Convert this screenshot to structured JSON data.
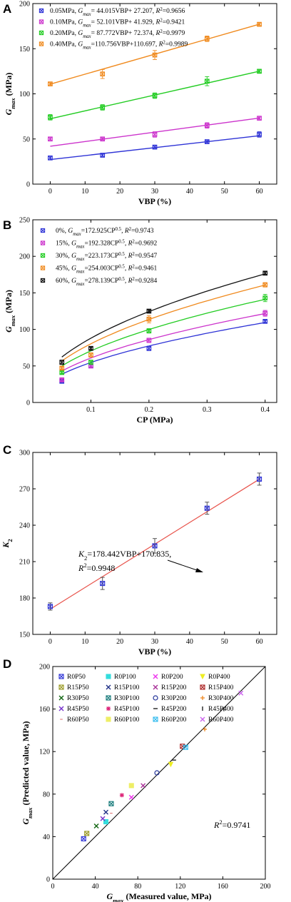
{
  "panels": [
    {
      "letter": "A"
    },
    {
      "letter": "B"
    },
    {
      "letter": "C"
    },
    {
      "letter": "D"
    }
  ],
  "chart_data": [
    {
      "type": "scatter",
      "panel": "A",
      "xlabel": "VBP (%)",
      "ylabel": "G_max (MPa)",
      "xlim": [
        -5,
        65
      ],
      "ylim": [
        0,
        200
      ],
      "xticks": [
        0,
        10,
        20,
        30,
        40,
        50,
        60
      ],
      "yticks": [
        0,
        50,
        100,
        150,
        200
      ],
      "x": [
        0,
        15,
        30,
        45,
        60
      ],
      "legend_position": "top-left",
      "series": [
        {
          "name": "0.05MPa",
          "fit_text": "0.05MPa, G_max= 44.015VBP+ 27.207, R²=0.9656",
          "color": "#2e33d6",
          "values": [
            29,
            32,
            41,
            47,
            55
          ],
          "err": [
            2,
            2,
            2,
            2,
            3
          ],
          "fit": [
            44.015,
            27.207
          ]
        },
        {
          "name": "0.10MPa",
          "fit_text": "0.10MPa, G_max= 52.101VBP+ 41.929, R²=0.9421",
          "color": "#cc33cc",
          "values": [
            50,
            50,
            55,
            65,
            73
          ],
          "err": [
            2,
            2,
            3,
            3,
            2
          ],
          "fit": [
            52.101,
            41.929
          ]
        },
        {
          "name": "0.20MPa",
          "fit_text": "0.20MPa, G_max= 87.772VBP+ 72.374, R²=0.9979",
          "color": "#22cc22",
          "values": [
            74,
            85,
            98,
            114,
            125
          ],
          "err": [
            3,
            3,
            3,
            5,
            2
          ],
          "fit": [
            87.772,
            72.374
          ]
        },
        {
          "name": "0.40MPa",
          "fit_text": "0.40MPa, G_max=110.756VBP+110.697, R²=0.9989",
          "color": "#f08a1e",
          "values": [
            111,
            122,
            143,
            161,
            177
          ],
          "err": [
            2,
            5,
            5,
            3,
            2
          ],
          "fit": [
            110.756,
            110.697
          ]
        }
      ]
    },
    {
      "type": "scatter",
      "panel": "B",
      "xlabel": "CP (MPa)",
      "ylabel": "G_max (MPa)",
      "xlim": [
        0,
        0.42
      ],
      "ylim": [
        0,
        250
      ],
      "xticks": [
        0.1,
        0.2,
        0.3,
        0.4
      ],
      "yticks": [
        0,
        50,
        100,
        150,
        200,
        250
      ],
      "x": [
        0.05,
        0.1,
        0.2,
        0.4
      ],
      "legend_position": "top-left",
      "series": [
        {
          "name": "0%",
          "fit_text": "0%, G_max=172.925CP^0.5, R²=0.9743",
          "color": "#2e33d6",
          "values": [
            29,
            50,
            74,
            111
          ],
          "err": [
            2,
            2,
            3,
            2
          ],
          "coef": 172.925
        },
        {
          "name": "15%",
          "fit_text": "15%, G_max=192.328CP^0.5, R²=0.9692",
          "color": "#cc33cc",
          "values": [
            31,
            50,
            85,
            122
          ],
          "err": [
            2,
            2,
            3,
            4
          ],
          "coef": 192.328
        },
        {
          "name": "30%",
          "fit_text": "30%, G_max=223.173CP^0.5, R²=0.9547",
          "color": "#22cc22",
          "values": [
            41,
            55,
            98,
            143
          ],
          "err": [
            2,
            3,
            3,
            5
          ],
          "coef": 223.173
        },
        {
          "name": "45%",
          "fit_text": "45%, G_max=254.003CP^0.5, R²=0.9461",
          "color": "#f08a1e",
          "values": [
            47,
            65,
            114,
            161
          ],
          "err": [
            2,
            3,
            5,
            3
          ],
          "coef": 254.003
        },
        {
          "name": "60%",
          "fit_text": "60%, G_max=278.139CP^0.5, R²=0.9284",
          "color": "#111111",
          "values": [
            55,
            74,
            125,
            177
          ],
          "err": [
            3,
            2,
            2,
            2
          ],
          "coef": 278.139
        }
      ]
    },
    {
      "type": "scatter",
      "panel": "C",
      "xlabel": "VBP (%)",
      "ylabel": "K2",
      "xlim": [
        -5,
        65
      ],
      "ylim": [
        150,
        300
      ],
      "xticks": [
        0,
        10,
        20,
        30,
        40,
        50,
        60
      ],
      "yticks": [
        150,
        180,
        210,
        240,
        270,
        300
      ],
      "annotation_line1": "K2=178.442VBP+170.835,",
      "annotation_line2": "R²=0.9948",
      "x": [
        0,
        15,
        30,
        45,
        60
      ],
      "series": [
        {
          "name": "K2",
          "color": "#2e33d6",
          "values": [
            173,
            192,
            223,
            254,
            278
          ],
          "err": [
            3,
            5,
            6,
            5,
            5
          ],
          "fit": [
            178.442,
            170.835
          ],
          "fit_color": "#e8524a"
        }
      ]
    },
    {
      "type": "scatter",
      "panel": "D",
      "xlabel": "G_max (Measured value, MPa)",
      "ylabel": "G_max (Predicted value, MPa)",
      "xlim": [
        0,
        200
      ],
      "ylim": [
        0,
        200
      ],
      "xticks": [
        0,
        40,
        80,
        120,
        160,
        200
      ],
      "yticks": [
        0,
        40,
        80,
        120,
        160,
        200
      ],
      "r2_text": "R²=0.9741",
      "legend_position": "top-left",
      "series": [
        {
          "name": "R0P50",
          "color": "#2e33d6",
          "marker": "boxx",
          "x": 29,
          "y": 38
        },
        {
          "name": "R0P100",
          "color": "#33dddd",
          "marker": "square",
          "x": 50,
          "y": 54
        },
        {
          "name": "R0P200",
          "color": "#ee33ee",
          "marker": "x",
          "x": 74,
          "y": 77
        },
        {
          "name": "R0P400",
          "color": "#eeee22",
          "marker": "tri",
          "x": 111,
          "y": 108
        },
        {
          "name": "R15P50",
          "color": "#999922",
          "marker": "boxx",
          "x": 32,
          "y": 43
        },
        {
          "name": "R15P100",
          "color": "#223388",
          "marker": "x",
          "x": 50,
          "y": 63
        },
        {
          "name": "R15P200",
          "color": "#aa3399",
          "marker": "x",
          "x": 85,
          "y": 88
        },
        {
          "name": "R15P400",
          "color": "#aa2222",
          "marker": "boxx",
          "x": 122,
          "y": 125
        },
        {
          "name": "R30P50",
          "color": "#116611",
          "marker": "x",
          "x": 41,
          "y": 50
        },
        {
          "name": "R30P100",
          "color": "#117777",
          "marker": "boxx",
          "x": 55,
          "y": 71
        },
        {
          "name": "R30P200",
          "color": "#223399",
          "marker": "circle",
          "x": 98,
          "y": 100
        },
        {
          "name": "R30P400",
          "color": "#ee8822",
          "marker": "plus",
          "x": 143,
          "y": 141
        },
        {
          "name": "R45P50",
          "color": "#7733cc",
          "marker": "x",
          "x": 47,
          "y": 57
        },
        {
          "name": "R45P100",
          "color": "#dd2277",
          "marker": "star",
          "x": 65,
          "y": 79
        },
        {
          "name": "R45P200",
          "color": "#222222",
          "marker": "dash",
          "x": 114,
          "y": 112
        },
        {
          "name": "R45P400",
          "color": "#222222",
          "marker": "vbar",
          "x": 161,
          "y": 160
        },
        {
          "name": "R60P50",
          "color": "#dd6666",
          "marker": "hdash",
          "x": 55,
          "y": 62
        },
        {
          "name": "R60P100",
          "color": "#eeee66",
          "marker": "square",
          "x": 74,
          "y": 88
        },
        {
          "name": "R60P200",
          "color": "#33bbee",
          "marker": "boxx",
          "x": 125,
          "y": 124
        },
        {
          "name": "R60P400",
          "color": "#cc66ee",
          "marker": "x",
          "x": 177,
          "y": 175
        }
      ]
    }
  ]
}
